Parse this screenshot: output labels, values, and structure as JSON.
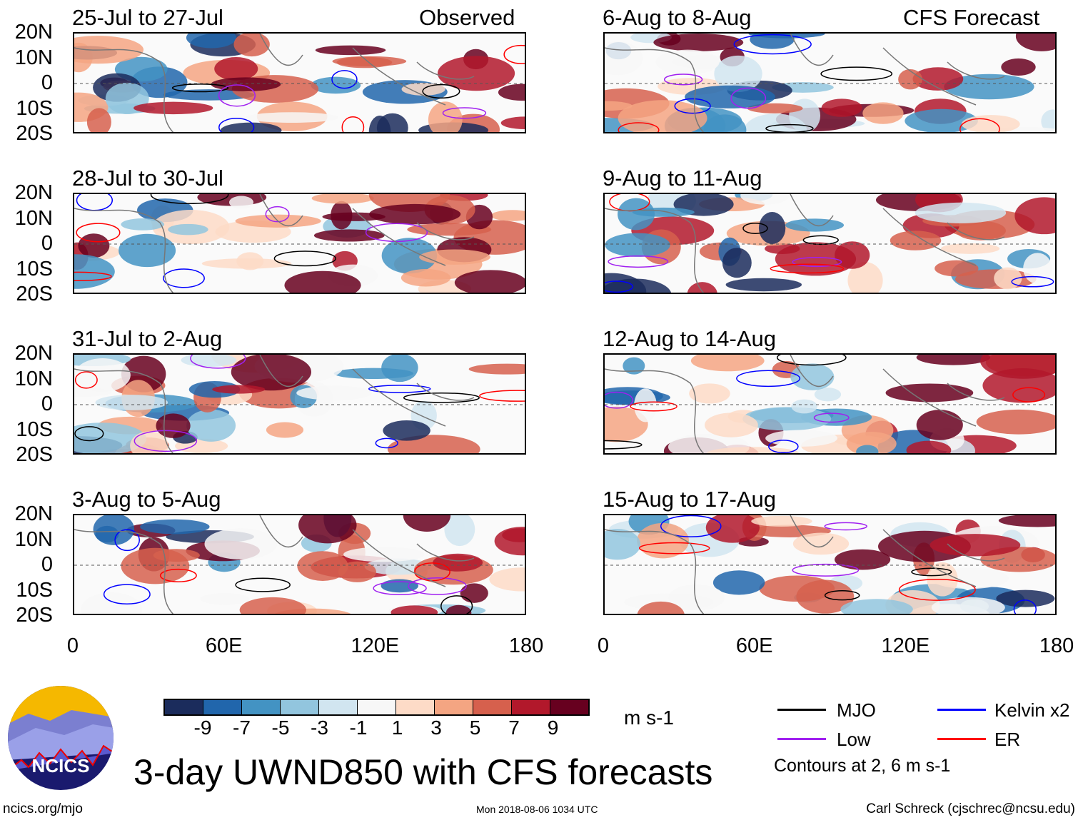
{
  "header": {
    "left_column_label": "Observed",
    "right_column_label": "CFS Forecast"
  },
  "panels": [
    {
      "title": "25-Jul to 27-Jul",
      "column": "observed"
    },
    {
      "title": "28-Jul to 30-Jul",
      "column": "observed"
    },
    {
      "title": "31-Jul to 2-Aug",
      "column": "observed"
    },
    {
      "title": "3-Aug to 5-Aug",
      "column": "observed"
    },
    {
      "title": "6-Aug to 8-Aug",
      "column": "forecast"
    },
    {
      "title": "9-Aug to 11-Aug",
      "column": "forecast"
    },
    {
      "title": "12-Aug to 14-Aug",
      "column": "forecast"
    },
    {
      "title": "15-Aug to 17-Aug",
      "column": "forecast"
    }
  ],
  "lat_labels": [
    "20N",
    "10N",
    "0",
    "10S",
    "20S"
  ],
  "lon_labels": [
    "0",
    "60E",
    "120E",
    "180"
  ],
  "colorbar": {
    "ticks": [
      "-9",
      "-7",
      "-5",
      "-3",
      "-1",
      "1",
      "3",
      "5",
      "7",
      "9"
    ],
    "colors": [
      "#1b2c5c",
      "#2166ac",
      "#4393c3",
      "#92c5de",
      "#d1e5f0",
      "#f7f7f7",
      "#fddbc7",
      "#f4a582",
      "#d6604d",
      "#b2182b",
      "#67001f"
    ],
    "units": "m s-1"
  },
  "legend": {
    "items": [
      {
        "label": "MJO",
        "color": "#000000"
      },
      {
        "label": "Kelvin x2",
        "color": "#0000ff"
      },
      {
        "label": "Low",
        "color": "#a020f0"
      },
      {
        "label": "ER",
        "color": "#ff0000"
      }
    ],
    "note": "Contours at 2, 6 m s-1"
  },
  "title": "3-day UWND850 with CFS forecasts",
  "logo_text": "NCICS",
  "footer": {
    "url": "ncics.org/mjo",
    "timestamp": "Mon 2018-08-06 1034 UTC",
    "credit": "Carl Schreck (cjschrec@ncsu.edu)"
  }
}
